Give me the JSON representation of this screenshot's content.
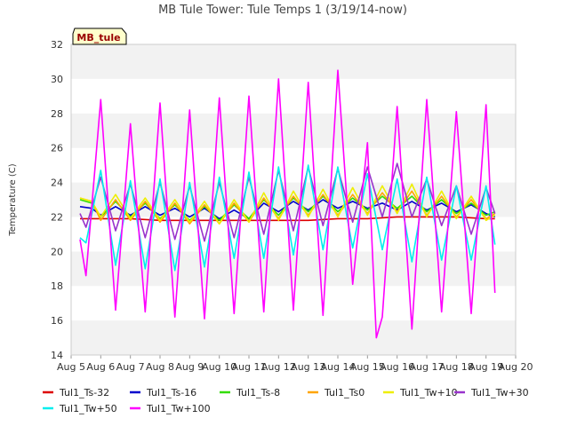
{
  "chart_data": {
    "type": "line",
    "title": "MB Tule Tower: Tule Temps 1 (3/19/14-now)",
    "ylabel": "Temperature (C)",
    "xlabel": "",
    "site_badge": "MB_tule",
    "xticks": [
      "Aug 5",
      "Aug 6",
      "Aug 7",
      "Aug 8",
      "Aug 9",
      "Aug 10",
      "Aug 11",
      "Aug 12",
      "Aug 13",
      "Aug 14",
      "Aug 15",
      "Aug 16",
      "Aug 17",
      "Aug 18",
      "Aug 19",
      "Aug 20"
    ],
    "xlim": [
      5,
      20
    ],
    "ylim": [
      14,
      32
    ],
    "yticks": [
      14,
      16,
      18,
      20,
      22,
      24,
      26,
      28,
      30,
      32
    ],
    "grid": "horizontal alternating bands",
    "legend_position": "bottom",
    "x_units": "day of August",
    "series": [
      {
        "name": "Tul1_Ts-32",
        "color": "#dd0000",
        "x": [
          5.3,
          6,
          7,
          8,
          9,
          10,
          11,
          12,
          13,
          14,
          15,
          16,
          17,
          18,
          19,
          19.3
        ],
        "y": [
          21.9,
          21.9,
          21.9,
          21.8,
          21.8,
          21.8,
          21.8,
          21.8,
          21.8,
          21.9,
          21.9,
          22.0,
          22.0,
          22.0,
          21.9,
          21.9
        ]
      },
      {
        "name": "Tul1_Ts-16",
        "color": "#0000cc",
        "x": [
          5.3,
          5.7,
          6.0,
          6.5,
          7.0,
          7.5,
          8.0,
          8.5,
          9.0,
          9.5,
          10.0,
          10.5,
          11.0,
          11.5,
          12.0,
          12.5,
          13.0,
          13.5,
          14.0,
          14.5,
          15.0,
          15.5,
          16.0,
          16.5,
          17.0,
          17.5,
          18.0,
          18.5,
          19.0,
          19.3
        ],
        "y": [
          22.6,
          22.5,
          22.1,
          22.6,
          22.1,
          22.6,
          22.1,
          22.5,
          22.0,
          22.5,
          21.9,
          22.4,
          21.9,
          22.8,
          22.3,
          22.9,
          22.4,
          23.0,
          22.5,
          22.9,
          22.5,
          22.8,
          22.4,
          22.9,
          22.4,
          22.8,
          22.3,
          22.7,
          22.2,
          22.0
        ]
      },
      {
        "name": "Tul1_Ts-8",
        "color": "#33dd00",
        "x": [
          5.3,
          5.7,
          6.0,
          6.5,
          7.0,
          7.5,
          8.0,
          8.5,
          9.0,
          9.5,
          10.0,
          10.5,
          11.0,
          11.5,
          12.0,
          12.5,
          13.0,
          13.5,
          14.0,
          14.5,
          15.0,
          15.5,
          16.0,
          16.5,
          17.0,
          17.5,
          18.0,
          18.5,
          19.0,
          19.3
        ],
        "y": [
          23.0,
          22.8,
          22.0,
          22.9,
          22.0,
          22.8,
          21.9,
          22.7,
          21.8,
          22.6,
          21.8,
          22.7,
          21.9,
          23.0,
          22.1,
          23.1,
          22.3,
          23.2,
          22.3,
          23.1,
          22.4,
          23.2,
          22.5,
          23.2,
          22.3,
          23.0,
          22.2,
          22.8,
          22.1,
          22.3
        ]
      },
      {
        "name": "Tul1_Ts0",
        "color": "#ffa500",
        "x": [
          5.3,
          5.7,
          6.0,
          6.5,
          7.0,
          7.5,
          8.0,
          8.5,
          9.0,
          9.5,
          10.0,
          10.5,
          11.0,
          11.5,
          12.0,
          12.5,
          13.0,
          13.5,
          14.0,
          14.5,
          15.0,
          15.5,
          16.0,
          16.5,
          17.0,
          17.5,
          18.0,
          18.5,
          19.0,
          19.3
        ],
        "y": [
          23.1,
          22.9,
          21.8,
          23.0,
          21.8,
          22.9,
          21.7,
          22.8,
          21.6,
          22.7,
          21.6,
          22.8,
          21.7,
          23.1,
          21.9,
          23.2,
          22.1,
          23.3,
          22.1,
          23.3,
          22.2,
          23.4,
          22.3,
          23.5,
          22.1,
          23.2,
          22.0,
          23.0,
          21.9,
          22.2
        ]
      },
      {
        "name": "Tul1_Tw+10",
        "color": "#eeee00",
        "x": [
          5.3,
          5.7,
          6.0,
          6.5,
          7.0,
          7.5,
          8.0,
          8.5,
          9.0,
          9.5,
          10.0,
          10.5,
          11.0,
          11.5,
          12.0,
          12.5,
          13.0,
          13.5,
          14.0,
          14.5,
          15.0,
          15.5,
          16.0,
          16.5,
          17.0,
          17.5,
          18.0,
          18.5,
          19.0,
          19.3
        ],
        "y": [
          23.1,
          22.9,
          22.0,
          23.3,
          21.9,
          23.1,
          21.8,
          23.0,
          21.7,
          22.9,
          21.6,
          23.0,
          21.7,
          23.4,
          21.8,
          23.5,
          22.0,
          23.6,
          22.0,
          23.7,
          22.1,
          23.8,
          22.2,
          23.9,
          22.0,
          23.5,
          21.9,
          23.2,
          21.8,
          22.1
        ]
      },
      {
        "name": "Tul1_Tw+30",
        "color": "#9933cc",
        "x": [
          5.3,
          5.5,
          6.0,
          6.5,
          7.0,
          7.5,
          8.0,
          8.5,
          9.0,
          9.5,
          10.0,
          10.5,
          11.0,
          11.5,
          12.0,
          12.5,
          13.0,
          13.5,
          14.0,
          14.5,
          15.0,
          15.5,
          16.0,
          16.5,
          17.0,
          17.5,
          18.0,
          18.5,
          19.0,
          19.3
        ],
        "y": [
          22.2,
          21.4,
          24.3,
          21.2,
          23.9,
          20.8,
          24.0,
          20.7,
          23.8,
          20.6,
          24.0,
          20.8,
          24.3,
          21.0,
          24.7,
          21.2,
          24.9,
          21.5,
          24.8,
          21.7,
          24.9,
          22.0,
          25.1,
          22.0,
          24.2,
          21.5,
          23.8,
          21.0,
          23.7,
          22.2
        ]
      },
      {
        "name": "Tul1_Tw+50",
        "color": "#00eeee",
        "x": [
          5.3,
          5.5,
          6.0,
          6.5,
          7.0,
          7.5,
          8.0,
          8.5,
          9.0,
          9.5,
          10.0,
          10.5,
          11.0,
          11.5,
          12.0,
          12.5,
          13.0,
          13.5,
          14.0,
          14.5,
          15.0,
          15.5,
          16.0,
          16.5,
          17.0,
          17.5,
          18.0,
          18.5,
          19.0,
          19.3
        ],
        "y": [
          20.8,
          20.5,
          24.7,
          19.2,
          24.1,
          19.0,
          24.2,
          18.9,
          24.0,
          19.1,
          24.3,
          19.6,
          24.6,
          19.6,
          24.9,
          19.8,
          25.0,
          20.1,
          24.9,
          20.2,
          24.5,
          20.1,
          24.2,
          19.4,
          24.3,
          19.5,
          23.8,
          19.5,
          23.8,
          20.4
        ]
      },
      {
        "name": "Tul1_Tw+100",
        "color": "#ff00ff",
        "x": [
          5.3,
          5.5,
          6.0,
          6.5,
          7.0,
          7.5,
          8.0,
          8.5,
          9.0,
          9.5,
          10.0,
          10.5,
          11.0,
          11.5,
          12.0,
          12.5,
          13.0,
          13.5,
          14.0,
          14.5,
          15.0,
          15.3,
          15.5,
          16.0,
          16.5,
          17.0,
          17.5,
          18.0,
          18.5,
          19.0,
          19.3
        ],
        "y": [
          20.7,
          18.6,
          28.8,
          16.6,
          27.4,
          16.5,
          28.6,
          16.2,
          28.2,
          16.1,
          28.9,
          16.4,
          29.0,
          16.5,
          30.0,
          16.6,
          29.8,
          16.3,
          30.5,
          18.1,
          26.3,
          15.0,
          16.2,
          28.4,
          15.5,
          28.8,
          16.5,
          28.1,
          16.4,
          28.5,
          17.6
        ]
      }
    ]
  }
}
